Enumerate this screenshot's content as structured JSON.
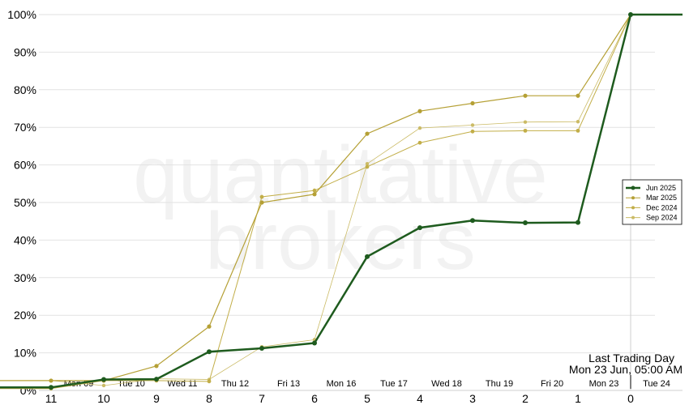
{
  "watermark": [
    "quantitative",
    "brokers"
  ],
  "legend": [
    "Jun 2025",
    "Mar 2025",
    "Dec 2024",
    "Sep 2024"
  ],
  "annotation": {
    "line1": "Last Trading Day",
    "line2": "Mon 23 Jun, 05:00 AM"
  },
  "day_labels": [
    "Mon 09",
    "Tue 10",
    "Wed 11",
    "Thu 12",
    "Fri 13",
    "Mon 16",
    "Tue 17",
    "Wed 18",
    "Thu 19",
    "Fri 20",
    "Mon 23",
    "Tue 24"
  ],
  "colors": {
    "Jun 2025": "#1e5b1e",
    "Mar 2025": "#b5a035",
    "Dec 2024": "#c2ae48",
    "Sep 2024": "#cbbb66",
    "grid": "#e2e2e2"
  },
  "chart_data": {
    "type": "line",
    "x": [
      11,
      10,
      9,
      8,
      7,
      6,
      5,
      4,
      3,
      2,
      1,
      0
    ],
    "xlim": [
      11.5,
      -1
    ],
    "ylim": [
      0,
      100
    ],
    "yticks": [
      0,
      10,
      20,
      30,
      40,
      50,
      60,
      70,
      80,
      90,
      100
    ],
    "ytick_format": "%",
    "grid": true,
    "legend_position": "right",
    "series": [
      {
        "name": "Jun 2025",
        "values": [
          0.8,
          2.9,
          3.0,
          10.3,
          11.2,
          12.6,
          35.6,
          43.3,
          45.2,
          44.6,
          44.7,
          100
        ]
      },
      {
        "name": "Mar 2025",
        "values": [
          2.6,
          2.6,
          6.5,
          17.0,
          50.0,
          52.2,
          68.3,
          74.3,
          76.4,
          78.4,
          78.4,
          100
        ]
      },
      {
        "name": "Dec 2024",
        "values": [
          0.5,
          2.6,
          2.6,
          2.4,
          51.5,
          53.2,
          59.5,
          65.9,
          68.9,
          69.1,
          69.1,
          100
        ]
      },
      {
        "name": "Sep 2024",
        "values": [
          2.6,
          1.3,
          3.1,
          2.9,
          11.6,
          13.5,
          60.3,
          69.8,
          70.6,
          71.4,
          71.5,
          100
        ]
      }
    ]
  }
}
